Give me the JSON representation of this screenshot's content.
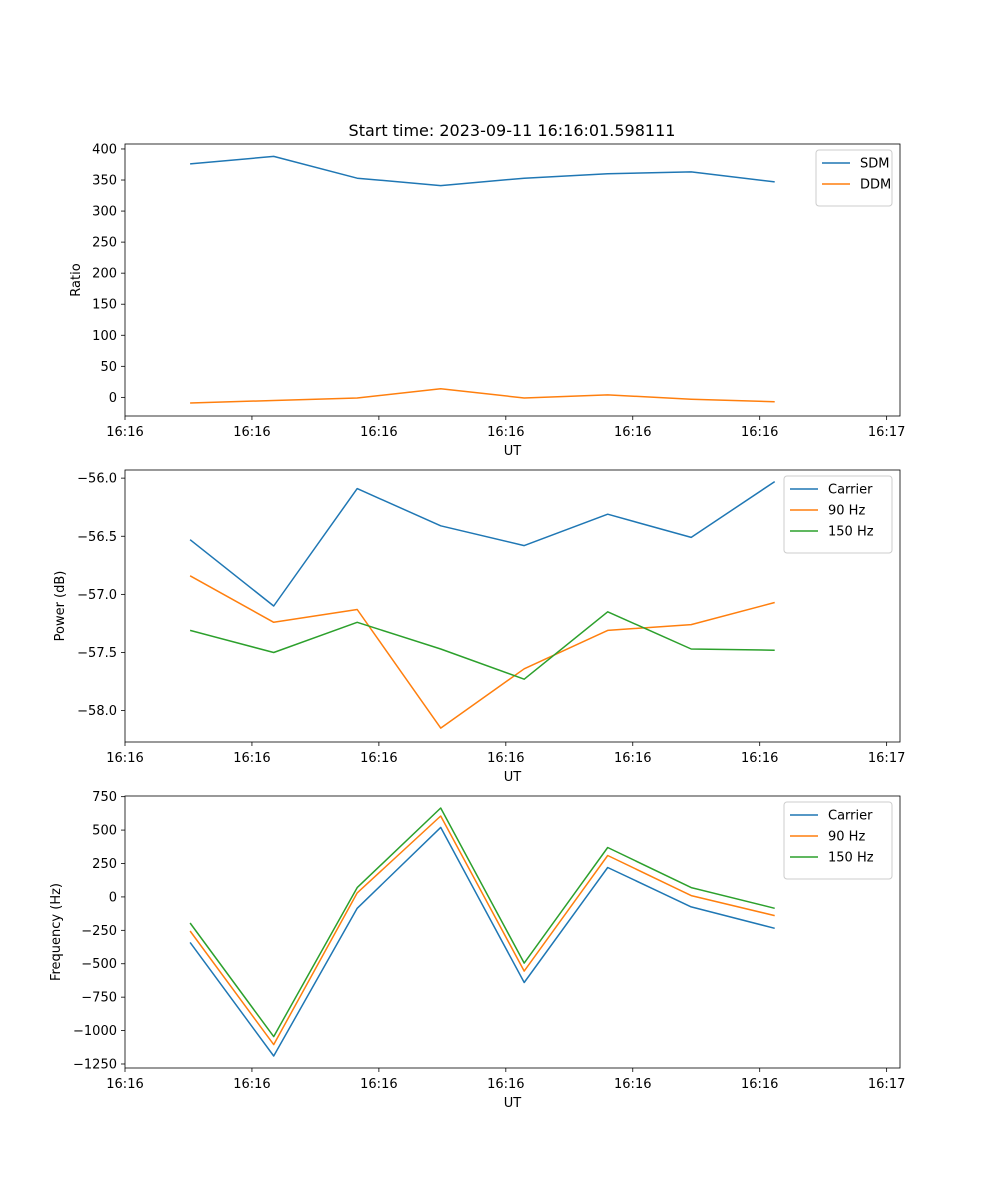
{
  "title": "Start time: 2023-09-11 16:16:01.598111",
  "chart_data": [
    {
      "type": "line",
      "title": "Start time: 2023-09-11 16:16:01.598111",
      "xlabel": "UT",
      "ylabel": "Ratio",
      "x": [
        1,
        2,
        3,
        4,
        5,
        6,
        7,
        8
      ],
      "xlim": [
        0.22,
        9.5
      ],
      "xticks": [
        0.22,
        1.74,
        3.26,
        4.78,
        6.3,
        7.82,
        9.34
      ],
      "xtick_labels": [
        "16:16",
        "16:16",
        "16:16",
        "16:16",
        "16:16",
        "16:16",
        "16:17"
      ],
      "ylim": [
        -30,
        408
      ],
      "yticks": [
        0,
        50,
        100,
        150,
        200,
        250,
        300,
        350,
        400
      ],
      "ytick_labels": [
        "0",
        "50",
        "100",
        "150",
        "200",
        "250",
        "300",
        "350",
        "400"
      ],
      "legend": "top-right",
      "series": [
        {
          "name": "SDM",
          "color": "#1f77b4",
          "values": [
            376,
            388,
            353,
            341,
            353,
            360,
            363,
            347
          ]
        },
        {
          "name": "DDM",
          "color": "#ff7f0e",
          "values": [
            -9,
            -5,
            -1,
            14,
            -1,
            4,
            -3,
            -7
          ]
        }
      ]
    },
    {
      "type": "line",
      "title": "",
      "xlabel": "UT",
      "ylabel": "Power (dB)",
      "x": [
        1,
        2,
        3,
        4,
        5,
        6,
        7,
        8
      ],
      "xlim": [
        0.22,
        9.5
      ],
      "xticks": [
        0.22,
        1.74,
        3.26,
        4.78,
        6.3,
        7.82,
        9.34
      ],
      "xtick_labels": [
        "16:16",
        "16:16",
        "16:16",
        "16:16",
        "16:16",
        "16:16",
        "16:17"
      ],
      "ylim": [
        -58.27,
        -55.93
      ],
      "yticks": [
        -58.0,
        -57.5,
        -57.0,
        -56.5,
        -56.0
      ],
      "ytick_labels": [
        "−58.0",
        "−57.5",
        "−57.0",
        "−56.5",
        "−56.0"
      ],
      "legend": "top-right",
      "series": [
        {
          "name": "Carrier",
          "color": "#1f77b4",
          "values": [
            -56.53,
            -57.1,
            -56.09,
            -56.41,
            -56.58,
            -56.31,
            -56.51,
            -56.03
          ]
        },
        {
          "name": "90 Hz",
          "color": "#ff7f0e",
          "values": [
            -56.84,
            -57.24,
            -57.13,
            -58.15,
            -57.64,
            -57.31,
            -57.26,
            -57.07
          ]
        },
        {
          "name": "150 Hz",
          "color": "#2ca02c",
          "values": [
            -57.31,
            -57.5,
            -57.24,
            -57.47,
            -57.73,
            -57.15,
            -57.47,
            -57.48
          ]
        }
      ]
    },
    {
      "type": "line",
      "title": "",
      "xlabel": "UT",
      "ylabel": "Frequency (Hz)",
      "x": [
        1,
        2,
        3,
        4,
        5,
        6,
        7,
        8
      ],
      "xlim": [
        0.22,
        9.5
      ],
      "xticks": [
        0.22,
        1.74,
        3.26,
        4.78,
        6.3,
        7.82,
        9.34
      ],
      "xtick_labels": [
        "16:16",
        "16:16",
        "16:16",
        "16:16",
        "16:16",
        "16:16",
        "16:17"
      ],
      "ylim": [
        -1280,
        755
      ],
      "yticks": [
        -1250,
        -1000,
        -750,
        -500,
        -250,
        0,
        250,
        500,
        750
      ],
      "ytick_labels": [
        "−1250",
        "−1000",
        "−750",
        "−500",
        "−250",
        "0",
        "250",
        "500",
        "750"
      ],
      "legend": "top-right",
      "series": [
        {
          "name": "Carrier",
          "color": "#1f77b4",
          "values": [
            -340,
            -1190,
            -85,
            520,
            -640,
            220,
            -75,
            -235
          ]
        },
        {
          "name": "90 Hz",
          "color": "#ff7f0e",
          "values": [
            -255,
            -1105,
            30,
            605,
            -555,
            310,
            10,
            -140
          ]
        },
        {
          "name": "150 Hz",
          "color": "#2ca02c",
          "values": [
            -195,
            -1045,
            70,
            665,
            -495,
            370,
            70,
            -85
          ]
        }
      ]
    }
  ]
}
